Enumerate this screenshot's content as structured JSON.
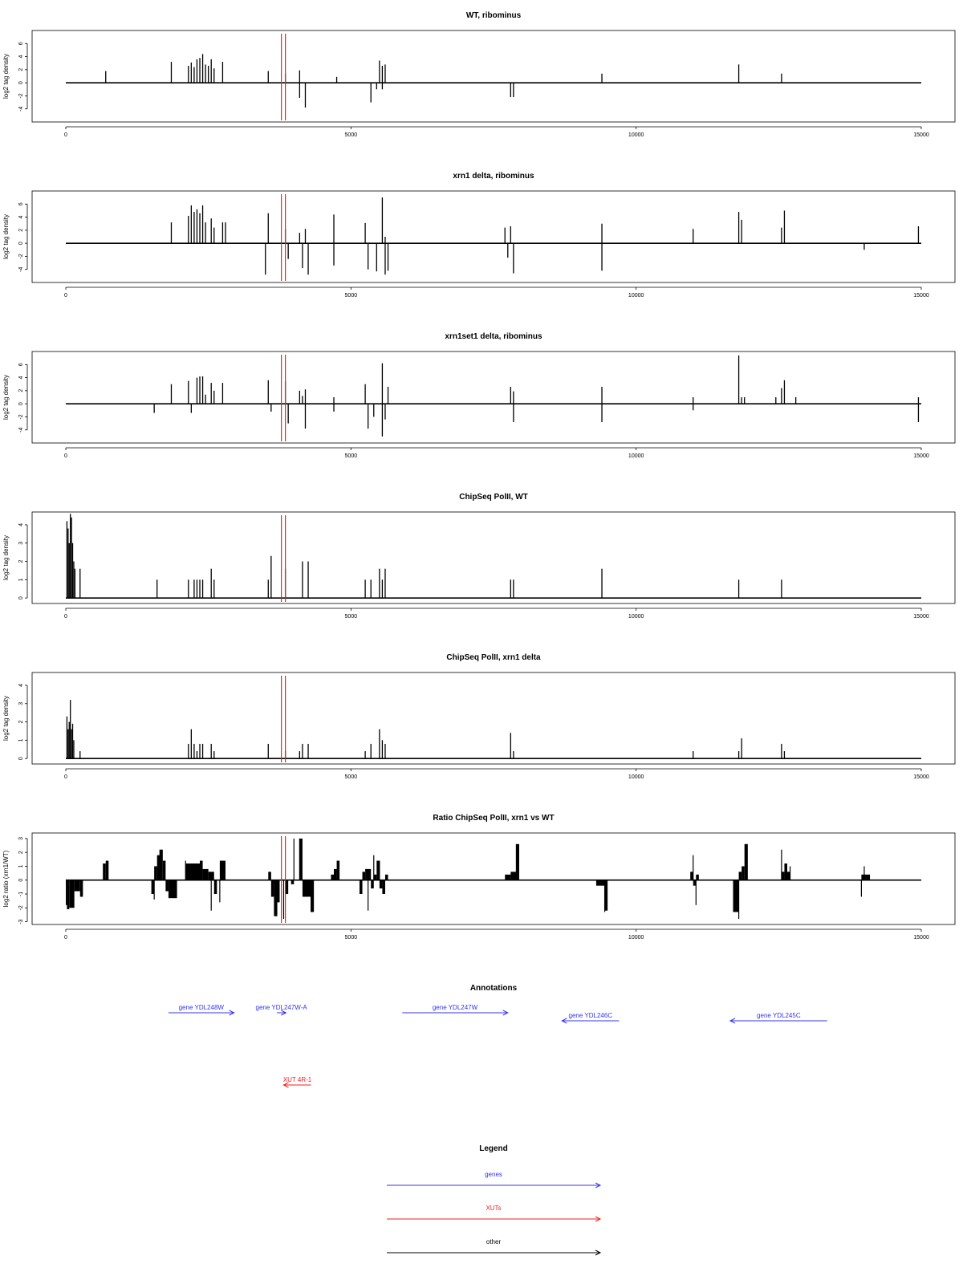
{
  "colors": {
    "gene": "#3333ee",
    "xut": "#ee2222",
    "other": "#000000",
    "marker": "#ee2222"
  },
  "marker_positions": [
    3780,
    3850
  ],
  "chart_data": [
    {
      "type": "bar",
      "title": "WT, ribominus",
      "ylabel": "log2 tag density",
      "xlim": [
        0,
        15000
      ],
      "ylim": [
        -6,
        8
      ],
      "yticks": [
        -4,
        -2,
        0,
        2,
        4,
        6
      ],
      "xticks": [
        0,
        5000,
        10000,
        15000
      ],
      "bars": [
        [
          700,
          1.8
        ],
        [
          1850,
          3.2
        ],
        [
          2150,
          2.6
        ],
        [
          2200,
          3.1
        ],
        [
          2250,
          2.4
        ],
        [
          2300,
          3.6
        ],
        [
          2350,
          3.8
        ],
        [
          2400,
          4.4
        ],
        [
          2450,
          2.8
        ],
        [
          2500,
          2.6
        ],
        [
          2550,
          3.6
        ],
        [
          2600,
          2.2
        ],
        [
          2750,
          3.2
        ],
        [
          3550,
          1.8
        ],
        [
          3850,
          1.4
        ],
        [
          4100,
          1.9
        ],
        [
          4100,
          -2.3
        ],
        [
          4200,
          -3.8
        ],
        [
          4750,
          0.9
        ],
        [
          5350,
          -3
        ],
        [
          5450,
          -1
        ],
        [
          5500,
          3.4
        ],
        [
          5550,
          2.6
        ],
        [
          5600,
          2.8
        ],
        [
          5550,
          -1
        ],
        [
          7800,
          -2.2
        ],
        [
          7850,
          -2.2
        ],
        [
          9400,
          1.4
        ],
        [
          11800,
          2.8
        ],
        [
          12550,
          1.4
        ]
      ]
    },
    {
      "type": "bar",
      "title": "xrn1 delta, ribominus",
      "ylabel": "log2 tag density",
      "xlim": [
        0,
        15000
      ],
      "ylim": [
        -6,
        8
      ],
      "yticks": [
        -4,
        -2,
        0,
        2,
        4,
        6
      ],
      "xticks": [
        0,
        5000,
        10000,
        15000
      ],
      "bars": [
        [
          1850,
          3.2
        ],
        [
          2150,
          4.2
        ],
        [
          2200,
          5.8
        ],
        [
          2250,
          4.8
        ],
        [
          2300,
          5.2
        ],
        [
          2350,
          4.6
        ],
        [
          2400,
          5.8
        ],
        [
          2450,
          3.2
        ],
        [
          2550,
          3.8
        ],
        [
          2600,
          2.4
        ],
        [
          2750,
          3.2
        ],
        [
          2800,
          3.2
        ],
        [
          3550,
          4.6
        ],
        [
          3500,
          -4.8
        ],
        [
          3850,
          2.2
        ],
        [
          3900,
          -2.4
        ],
        [
          4100,
          1.6
        ],
        [
          4150,
          -3.8
        ],
        [
          4200,
          2.2
        ],
        [
          4250,
          -4.8
        ],
        [
          4700,
          4.4
        ],
        [
          4700,
          -3.4
        ],
        [
          5250,
          3.1
        ],
        [
          5300,
          -4
        ],
        [
          5450,
          -4.3
        ],
        [
          5550,
          7
        ],
        [
          5600,
          -4.8
        ],
        [
          5650,
          -4.2
        ],
        [
          5600,
          1
        ],
        [
          7700,
          2.4
        ],
        [
          7750,
          -2.2
        ],
        [
          7800,
          2.6
        ],
        [
          7850,
          -4.6
        ],
        [
          9400,
          3
        ],
        [
          9400,
          -4.2
        ],
        [
          11000,
          2.2
        ],
        [
          11800,
          4.8
        ],
        [
          11850,
          3.6
        ],
        [
          12550,
          2.4
        ],
        [
          12600,
          5
        ],
        [
          14000,
          -1
        ],
        [
          14950,
          2.6
        ]
      ]
    },
    {
      "type": "bar",
      "title": "xrn1set1 delta, ribominus",
      "ylabel": "log2 tag density",
      "xlim": [
        0,
        15000
      ],
      "ylim": [
        -6,
        8
      ],
      "yticks": [
        -4,
        -2,
        0,
        2,
        4,
        6
      ],
      "xticks": [
        0,
        5000,
        10000,
        15000
      ],
      "bars": [
        [
          1550,
          -1.4
        ],
        [
          1850,
          3
        ],
        [
          2150,
          3.5
        ],
        [
          2200,
          -1.4
        ],
        [
          2300,
          4
        ],
        [
          2350,
          4.2
        ],
        [
          2400,
          4.2
        ],
        [
          2450,
          1.4
        ],
        [
          2550,
          3.2
        ],
        [
          2600,
          2
        ],
        [
          2750,
          3.2
        ],
        [
          3550,
          3.6
        ],
        [
          3600,
          -1.2
        ],
        [
          3850,
          3.4
        ],
        [
          3900,
          -3
        ],
        [
          4100,
          2
        ],
        [
          4150,
          1.2
        ],
        [
          4200,
          2.2
        ],
        [
          4200,
          -3.8
        ],
        [
          4700,
          1
        ],
        [
          4700,
          -1.2
        ],
        [
          5250,
          3
        ],
        [
          5300,
          -3.8
        ],
        [
          5400,
          -2
        ],
        [
          5550,
          6.2
        ],
        [
          5550,
          -5
        ],
        [
          5600,
          -2.4
        ],
        [
          5650,
          2.6
        ],
        [
          7800,
          2.6
        ],
        [
          7850,
          1.9
        ],
        [
          7850,
          -2.8
        ],
        [
          9400,
          2.6
        ],
        [
          9400,
          -2.8
        ],
        [
          11000,
          1
        ],
        [
          11000,
          -1
        ],
        [
          11800,
          7.4
        ],
        [
          11850,
          1
        ],
        [
          11900,
          1
        ],
        [
          12450,
          1
        ],
        [
          12550,
          2.4
        ],
        [
          12600,
          3.6
        ],
        [
          12800,
          1
        ],
        [
          14950,
          1
        ],
        [
          14950,
          -2.8
        ]
      ]
    },
    {
      "type": "bar",
      "title": "ChipSeq PolII, WT",
      "ylabel": "log2 tag density",
      "xlim": [
        0,
        15000
      ],
      "ylim": [
        -0.3,
        4.7
      ],
      "yticks": [
        0,
        1,
        2,
        3,
        4
      ],
      "xticks": [
        0,
        5000,
        10000,
        15000
      ],
      "bars": [
        [
          20,
          4.2
        ],
        [
          40,
          3.8
        ],
        [
          60,
          3
        ],
        [
          80,
          4.6
        ],
        [
          100,
          4.4
        ],
        [
          120,
          3
        ],
        [
          140,
          2
        ],
        [
          160,
          1.6
        ],
        [
          250,
          1.6
        ],
        [
          1600,
          1
        ],
        [
          2150,
          1
        ],
        [
          2250,
          1
        ],
        [
          2300,
          1
        ],
        [
          2350,
          1
        ],
        [
          2400,
          1
        ],
        [
          2550,
          1.6
        ],
        [
          2600,
          1
        ],
        [
          3550,
          1
        ],
        [
          3600,
          2.3
        ],
        [
          3850,
          1.6
        ],
        [
          4150,
          2
        ],
        [
          4250,
          2
        ],
        [
          5250,
          1
        ],
        [
          5350,
          1
        ],
        [
          5500,
          1.6
        ],
        [
          5550,
          1
        ],
        [
          5600,
          1.6
        ],
        [
          7800,
          1
        ],
        [
          7850,
          1
        ],
        [
          9400,
          1.6
        ],
        [
          11800,
          1
        ],
        [
          12550,
          1
        ]
      ]
    },
    {
      "type": "bar",
      "title": "ChipSeq PolII, xrn1 delta",
      "ylabel": "log2 tag density",
      "xlim": [
        0,
        15000
      ],
      "ylim": [
        -0.3,
        4.7
      ],
      "yticks": [
        0,
        1,
        2,
        3,
        4
      ],
      "xticks": [
        0,
        5000,
        10000,
        15000
      ],
      "bars": [
        [
          20,
          2.3
        ],
        [
          40,
          1.6
        ],
        [
          60,
          2
        ],
        [
          80,
          3.2
        ],
        [
          100,
          1.6
        ],
        [
          120,
          1.9
        ],
        [
          140,
          1
        ],
        [
          250,
          0.4
        ],
        [
          2150,
          0.8
        ],
        [
          2200,
          1.6
        ],
        [
          2250,
          0.8
        ],
        [
          2300,
          0.4
        ],
        [
          2350,
          0.8
        ],
        [
          2400,
          0.8
        ],
        [
          2550,
          0.8
        ],
        [
          2600,
          0.4
        ],
        [
          3550,
          0.8
        ],
        [
          3850,
          0.4
        ],
        [
          4100,
          0.4
        ],
        [
          4150,
          0.8
        ],
        [
          4250,
          0.8
        ],
        [
          5250,
          0.4
        ],
        [
          5350,
          0.8
        ],
        [
          5500,
          1.6
        ],
        [
          5550,
          1
        ],
        [
          5600,
          0.8
        ],
        [
          7800,
          1.4
        ],
        [
          7850,
          0.4
        ],
        [
          11000,
          0.4
        ],
        [
          11800,
          0.4
        ],
        [
          11850,
          1.1
        ],
        [
          12550,
          0.8
        ],
        [
          12600,
          0.4
        ]
      ]
    },
    {
      "type": "area",
      "title": "Ratio ChipSeq PolII, xrn1 vs WT",
      "ylabel": "log2 ratio (xrn1/WT)",
      "xlim": [
        0,
        15000
      ],
      "ylim": [
        -3.2,
        3.4
      ],
      "yticks": [
        -3,
        -2,
        -1,
        0,
        1,
        2,
        3
      ],
      "xticks": [
        0,
        5000,
        10000,
        15000
      ],
      "segments": [
        [
          0,
          20,
          -1.8
        ],
        [
          20,
          60,
          -2.1
        ],
        [
          60,
          150,
          -2
        ],
        [
          150,
          250,
          -0.8
        ],
        [
          250,
          300,
          -1.2
        ],
        [
          650,
          700,
          1.2
        ],
        [
          700,
          750,
          1.4
        ],
        [
          1500,
          1550,
          -1
        ],
        [
          1550,
          1600,
          1
        ],
        [
          1600,
          1650,
          1.8
        ],
        [
          1650,
          1700,
          2.2
        ],
        [
          1700,
          1750,
          1.4
        ],
        [
          1750,
          1800,
          -0.8
        ],
        [
          1800,
          1950,
          -1.3
        ],
        [
          2100,
          2350,
          1.2
        ],
        [
          2350,
          2400,
          1.4
        ],
        [
          2400,
          2500,
          0.8
        ],
        [
          2500,
          2600,
          0.6
        ],
        [
          2600,
          2650,
          -1
        ],
        [
          2700,
          2800,
          1.4
        ],
        [
          3550,
          3600,
          0.6
        ],
        [
          3600,
          3650,
          -1.2
        ],
        [
          3650,
          3700,
          -2.6
        ],
        [
          3700,
          3750,
          -1.6
        ],
        [
          3850,
          3900,
          -1
        ],
        [
          3950,
          4000,
          -0.3
        ],
        [
          4100,
          4150,
          3
        ],
        [
          4150,
          4300,
          -1.2
        ],
        [
          4300,
          4350,
          -2.3
        ],
        [
          4650,
          4700,
          0.4
        ],
        [
          4700,
          4750,
          0.8
        ],
        [
          4750,
          4800,
          1.4
        ],
        [
          5150,
          5200,
          -1
        ],
        [
          5200,
          5250,
          0.6
        ],
        [
          5250,
          5350,
          0.8
        ],
        [
          5350,
          5400,
          -0.6
        ],
        [
          5400,
          5450,
          0.4
        ],
        [
          5450,
          5500,
          1.4
        ],
        [
          5500,
          5550,
          -0.6
        ],
        [
          5550,
          5600,
          -1
        ],
        [
          5600,
          5650,
          0.4
        ],
        [
          7700,
          7800,
          0.4
        ],
        [
          7800,
          7900,
          0.6
        ],
        [
          7900,
          7950,
          2.6
        ],
        [
          9300,
          9400,
          -0.4
        ],
        [
          9400,
          9450,
          -0.4
        ],
        [
          9450,
          9500,
          -2.2
        ],
        [
          10950,
          11000,
          0.6
        ],
        [
          11000,
          11050,
          -0.4
        ],
        [
          11050,
          11100,
          0.4
        ],
        [
          11700,
          11800,
          -2.3
        ],
        [
          11800,
          11850,
          0.6
        ],
        [
          11850,
          11900,
          1
        ],
        [
          11900,
          11950,
          2.6
        ],
        [
          12550,
          12600,
          0.6
        ],
        [
          12600,
          12650,
          1.2
        ],
        [
          12650,
          12700,
          0.6
        ],
        [
          13950,
          14000,
          0.4
        ],
        [
          14000,
          14100,
          0.4
        ]
      ],
      "spikes": [
        [
          3700,
          -2.6
        ],
        [
          3820,
          -2.8
        ],
        [
          4000,
          3
        ],
        [
          4100,
          3
        ],
        [
          4300,
          -2.3
        ],
        [
          5300,
          -2.2
        ],
        [
          5400,
          1.8
        ],
        [
          5500,
          1.4
        ],
        [
          7900,
          2.6
        ],
        [
          9450,
          -2.3
        ],
        [
          11000,
          1.8
        ],
        [
          11050,
          -1.8
        ],
        [
          11800,
          -2.8
        ],
        [
          11950,
          2.6
        ],
        [
          12550,
          2.2
        ],
        [
          12700,
          1
        ],
        [
          14000,
          1
        ],
        [
          13950,
          -1.2
        ],
        [
          1550,
          -1.4
        ],
        [
          1650,
          2.2
        ],
        [
          2100,
          1.4
        ],
        [
          2550,
          -2.2
        ],
        [
          2700,
          -1.6
        ]
      ]
    },
    {
      "type": "table",
      "title": "Annotations",
      "xlim": [
        0,
        15000
      ],
      "features": [
        {
          "label": "gene YDL248W",
          "start": 1800,
          "end": 2950,
          "strand": "+",
          "kind": "gene",
          "lane": 0
        },
        {
          "label": "gene YDL247W-A",
          "start": 3700,
          "end": 3860,
          "strand": "+",
          "kind": "gene",
          "lane": 0
        },
        {
          "label": "gene YDL247W",
          "start": 5900,
          "end": 7750,
          "strand": "+",
          "kind": "gene",
          "lane": 0
        },
        {
          "label": "gene YDL246C",
          "start": 8700,
          "end": 9700,
          "strand": "-",
          "kind": "gene",
          "lane": 1
        },
        {
          "label": "gene YDL245C",
          "start": 11650,
          "end": 13350,
          "strand": "-",
          "kind": "gene",
          "lane": 1
        },
        {
          "label": "XUT 4R-1",
          "start": 3820,
          "end": 4300,
          "strand": "-",
          "kind": "xut",
          "lane": 9
        }
      ]
    },
    {
      "type": "table",
      "title": "Legend",
      "entries": [
        {
          "label": "genes",
          "kind": "gene"
        },
        {
          "label": "XUTs",
          "kind": "xut"
        },
        {
          "label": "other",
          "kind": "other"
        }
      ]
    }
  ]
}
